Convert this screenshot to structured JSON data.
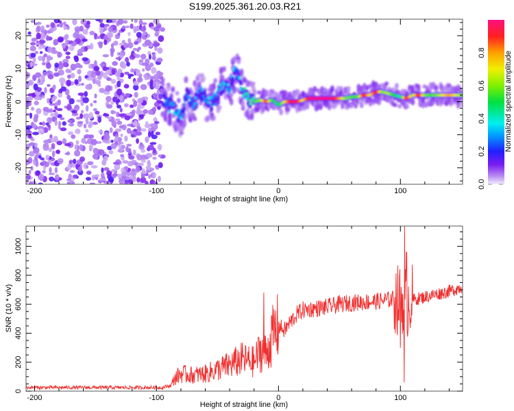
{
  "chart_data": [
    {
      "type": "heatmap",
      "title": "S199.2025.361.20.03.R21",
      "xlabel": "Height of straight line (km)",
      "ylabel": "Frequency (Hz)",
      "xlim": [
        -207,
        151
      ],
      "ylim": [
        -25,
        25
      ],
      "xticks": [
        -200,
        -100,
        0,
        100
      ],
      "yticks": [
        -20,
        -10,
        0,
        10,
        20
      ],
      "colorbar": {
        "label": "Normalized spectral amplitude",
        "range": [
          0,
          1
        ],
        "ticks": [
          "0.0",
          "0.2",
          "0.4",
          "0.6",
          "0.8"
        ],
        "colors": [
          "#f4eefc",
          "#b78cf2",
          "#7a1cf0",
          "#2020ff",
          "#00a0ff",
          "#00f0f0",
          "#00e040",
          "#80f000",
          "#f0f000",
          "#ffa000",
          "#ff2020",
          "#ff1080"
        ]
      },
      "noise_region_x": [
        -207,
        -95
      ],
      "ridge": [
        {
          "x": -95,
          "f": 1.0,
          "a": 0.2
        },
        {
          "x": -90,
          "f": -1.0,
          "a": 0.3
        },
        {
          "x": -85,
          "f": -2.0,
          "a": 0.35
        },
        {
          "x": -80,
          "f": -5.0,
          "a": 0.3
        },
        {
          "x": -75,
          "f": 2.0,
          "a": 0.25
        },
        {
          "x": -70,
          "f": -1.5,
          "a": 0.3
        },
        {
          "x": -65,
          "f": 3.0,
          "a": 0.3
        },
        {
          "x": -60,
          "f": 1.0,
          "a": 0.3
        },
        {
          "x": -55,
          "f": -1.0,
          "a": 0.3
        },
        {
          "x": -50,
          "f": 2.0,
          "a": 0.35
        },
        {
          "x": -45,
          "f": 5.0,
          "a": 0.3
        },
        {
          "x": -40,
          "f": 4.0,
          "a": 0.3
        },
        {
          "x": -35,
          "f": 10.0,
          "a": 0.3
        },
        {
          "x": -30,
          "f": 4.0,
          "a": 0.35
        },
        {
          "x": -25,
          "f": 1.0,
          "a": 0.45
        },
        {
          "x": -20,
          "f": 0.0,
          "a": 0.55
        },
        {
          "x": -15,
          "f": 0.5,
          "a": 0.6
        },
        {
          "x": -10,
          "f": 0.0,
          "a": 0.9
        },
        {
          "x": -5,
          "f": 0.5,
          "a": 0.5
        },
        {
          "x": 0,
          "f": -1.0,
          "a": 0.45
        },
        {
          "x": 5,
          "f": 0.0,
          "a": 0.7
        },
        {
          "x": 10,
          "f": 0.0,
          "a": 0.95
        },
        {
          "x": 15,
          "f": 0.0,
          "a": 0.95
        },
        {
          "x": 20,
          "f": 0.5,
          "a": 0.7
        },
        {
          "x": 25,
          "f": 1.0,
          "a": 0.95
        },
        {
          "x": 30,
          "f": 1.0,
          "a": 1.0
        },
        {
          "x": 35,
          "f": 1.0,
          "a": 1.0
        },
        {
          "x": 40,
          "f": 1.0,
          "a": 1.0
        },
        {
          "x": 45,
          "f": 1.0,
          "a": 0.95
        },
        {
          "x": 50,
          "f": 1.0,
          "a": 0.8
        },
        {
          "x": 55,
          "f": 1.0,
          "a": 0.6
        },
        {
          "x": 60,
          "f": 1.5,
          "a": 0.55
        },
        {
          "x": 65,
          "f": 1.5,
          "a": 0.55
        },
        {
          "x": 70,
          "f": 2.0,
          "a": 0.95
        },
        {
          "x": 75,
          "f": 2.0,
          "a": 0.7
        },
        {
          "x": 80,
          "f": 3.0,
          "a": 0.95
        },
        {
          "x": 85,
          "f": 3.0,
          "a": 0.6
        },
        {
          "x": 90,
          "f": 2.5,
          "a": 0.65
        },
        {
          "x": 95,
          "f": 2.0,
          "a": 0.5
        },
        {
          "x": 100,
          "f": 1.5,
          "a": 0.4
        },
        {
          "x": 105,
          "f": 1.0,
          "a": 0.95
        },
        {
          "x": 110,
          "f": 2.0,
          "a": 0.6
        },
        {
          "x": 115,
          "f": 2.0,
          "a": 0.95
        },
        {
          "x": 120,
          "f": 2.0,
          "a": 0.6
        },
        {
          "x": 125,
          "f": 2.0,
          "a": 0.55
        },
        {
          "x": 130,
          "f": 2.0,
          "a": 0.6
        },
        {
          "x": 135,
          "f": 2.0,
          "a": 0.7
        },
        {
          "x": 140,
          "f": 2.0,
          "a": 0.8
        },
        {
          "x": 145,
          "f": 2.0,
          "a": 0.7
        },
        {
          "x": 151,
          "f": 2.0,
          "a": 0.6
        }
      ]
    },
    {
      "type": "line",
      "xlabel": "Height of straight line (km)",
      "ylabel": "SNR (10 * v/v)",
      "xlim": [
        -207,
        151
      ],
      "ylim": [
        0,
        1140
      ],
      "xticks": [
        -200,
        -100,
        0,
        100
      ],
      "yticks": [
        0,
        200,
        400,
        600,
        800,
        1000
      ],
      "color": "#f03030",
      "series": [
        {
          "name": "SNR",
          "x": [
            -207,
            -180,
            -150,
            -120,
            -95,
            -88,
            -85,
            -80,
            -70,
            -60,
            -50,
            -40,
            -30,
            -20,
            -15,
            -10,
            -5,
            0,
            5,
            10,
            15,
            20,
            30,
            40,
            50,
            60,
            70,
            80,
            90,
            95,
            100,
            103,
            105,
            108,
            110,
            120,
            130,
            140,
            151
          ],
          "y": [
            25,
            25,
            25,
            25,
            25,
            40,
            90,
            120,
            110,
            120,
            150,
            180,
            220,
            200,
            280,
            260,
            380,
            450,
            420,
            480,
            530,
            560,
            570,
            580,
            600,
            610,
            615,
            620,
            630,
            640,
            620,
            650,
            600,
            640,
            630,
            650,
            670,
            690,
            720
          ]
        }
      ],
      "spikes": [
        {
          "x": -12,
          "y": 680
        },
        {
          "x": 100,
          "y": 300
        },
        {
          "x": 103,
          "y": 60
        },
        {
          "x": 103.5,
          "y": 1140
        },
        {
          "x": 105,
          "y": 960
        }
      ]
    }
  ]
}
